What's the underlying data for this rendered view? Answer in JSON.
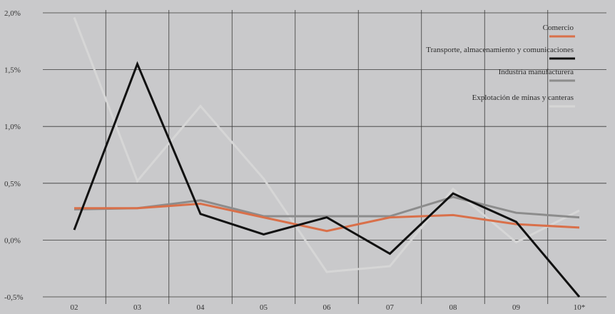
{
  "chart_data": {
    "type": "line",
    "title": "",
    "xlabel": "",
    "ylabel": "",
    "x": [
      "02",
      "03",
      "04",
      "05",
      "06",
      "07",
      "08",
      "09",
      "10*"
    ],
    "ylim": [
      -0.5,
      2.0
    ],
    "yticks": [
      "-0,5%",
      "0,0%",
      "0,5%",
      "1,0%",
      "1,5%",
      "2,0%"
    ],
    "grid": "vertical and horizontal",
    "legend_position": "top-right",
    "series": [
      {
        "name": "Comercio",
        "color": "#d9704a",
        "values": [
          0.28,
          0.28,
          0.32,
          0.2,
          0.08,
          0.2,
          0.22,
          0.14,
          0.11
        ]
      },
      {
        "name": "Transporte, almacenamiento y comunicaciones",
        "color": "#111111",
        "values": [
          0.09,
          1.55,
          0.23,
          0.05,
          0.2,
          -0.12,
          0.41,
          0.16,
          -0.5
        ]
      },
      {
        "name": "Industria manufacturera",
        "color": "#8c8c8c",
        "values": [
          0.27,
          0.28,
          0.35,
          0.21,
          0.21,
          0.21,
          0.38,
          0.24,
          0.2
        ]
      },
      {
        "name": "Explotación de minas y canteras",
        "color": "#d6d6d6",
        "values": [
          1.96,
          0.52,
          1.18,
          0.54,
          -0.28,
          -0.23,
          0.45,
          -0.02,
          0.26
        ]
      }
    ]
  }
}
